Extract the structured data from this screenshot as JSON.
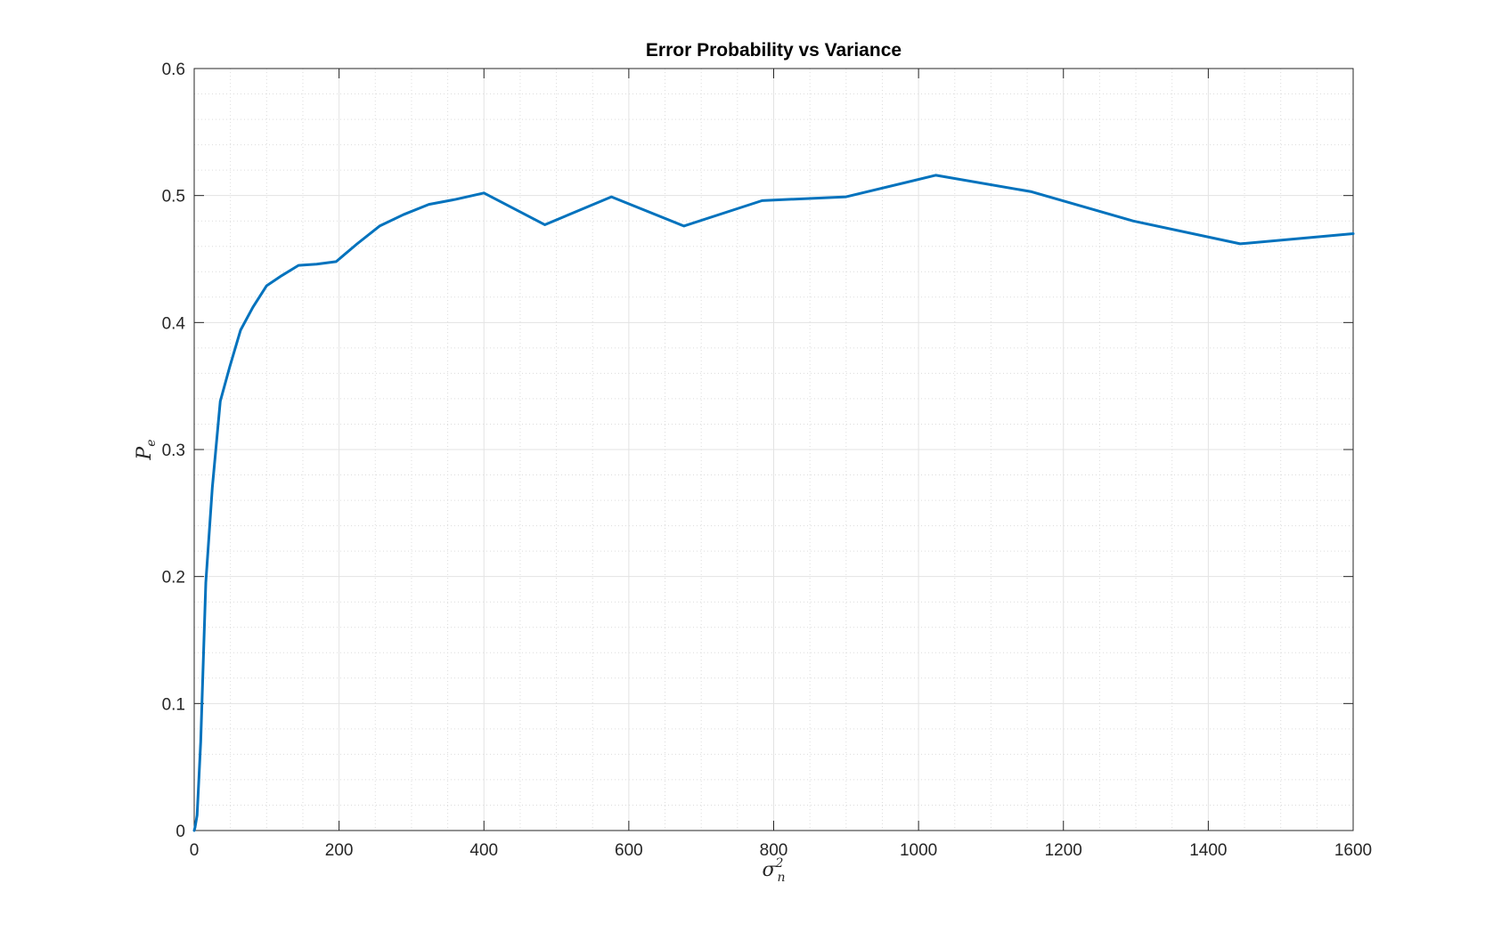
{
  "chart_data": {
    "type": "line",
    "title": "Error Probability vs Variance",
    "xlabel": {
      "base": "σ",
      "sup": "2",
      "sub": "n"
    },
    "ylabel": {
      "base": "P",
      "sub": "e"
    },
    "xlim": [
      0,
      1600
    ],
    "ylim": [
      0,
      0.6
    ],
    "xticks": [
      0,
      200,
      400,
      600,
      800,
      1000,
      1200,
      1400,
      1600
    ],
    "yticks": [
      0,
      0.1,
      0.2,
      0.3,
      0.4,
      0.5,
      0.6
    ],
    "xtick_labels": [
      "0",
      "200",
      "400",
      "600",
      "800",
      "1000",
      "1200",
      "1400",
      "1600"
    ],
    "ytick_labels": [
      "0",
      "0.1",
      "0.2",
      "0.3",
      "0.4",
      "0.5",
      "0.6"
    ],
    "grid": true,
    "minor_grid": true,
    "series": [
      {
        "color": "#0072BD",
        "x": [
          0,
          1,
          4,
          9,
          16,
          25,
          36,
          49,
          64,
          81,
          100,
          121,
          144,
          169,
          196,
          225,
          256,
          289,
          324,
          361,
          400,
          484,
          576,
          676,
          784,
          900,
          1024,
          1156,
          1296,
          1444,
          1600
        ],
        "y": [
          0,
          0.002,
          0.012,
          0.07,
          0.195,
          0.27,
          0.338,
          0.365,
          0.394,
          0.412,
          0.429,
          0.437,
          0.445,
          0.446,
          0.448,
          0.462,
          0.476,
          0.485,
          0.493,
          0.497,
          0.502,
          0.477,
          0.499,
          0.476,
          0.496,
          0.499,
          0.516,
          0.503,
          0.48,
          0.462,
          0.47
        ]
      }
    ]
  }
}
